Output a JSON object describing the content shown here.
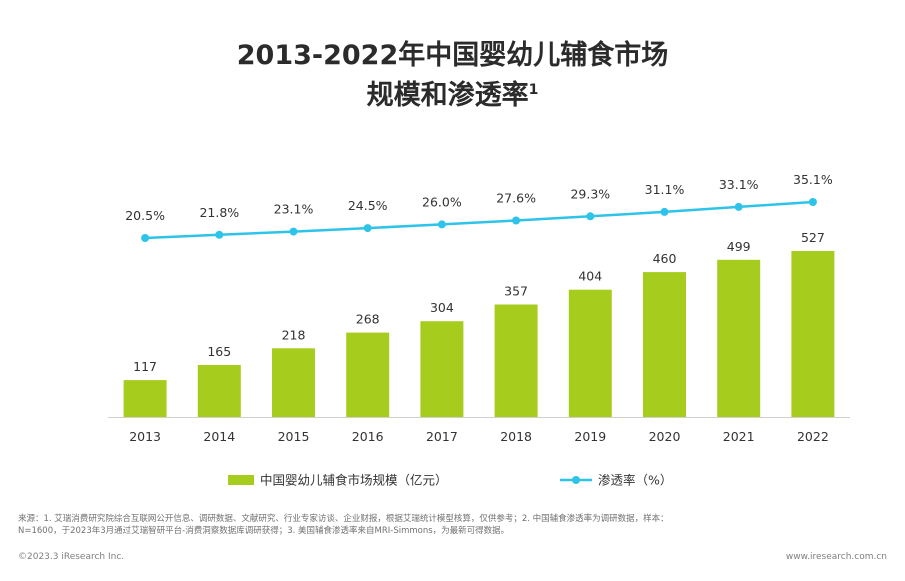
{
  "chart_data": {
    "type": "bar",
    "title_line1": "2013-2022年中国婴幼儿辅食市场",
    "title_line2": "规模和渗透率",
    "title_superscript": "1",
    "categories": [
      "2013",
      "2014",
      "2015",
      "2016",
      "2017",
      "2018",
      "2019",
      "2020",
      "2021",
      "2022"
    ],
    "series": [
      {
        "name": "中国婴幼儿辅食市场规模（亿元）",
        "type": "bar",
        "color": "#a6cd1d",
        "values": [
          117,
          165,
          218,
          268,
          304,
          357,
          404,
          460,
          499,
          527
        ],
        "labels": [
          "117",
          "165",
          "218",
          "268",
          "304",
          "357",
          "404",
          "460",
          "499",
          "527"
        ]
      },
      {
        "name": "渗透率（%）",
        "type": "line",
        "color": "#2ec4ea",
        "values": [
          20.5,
          21.8,
          23.1,
          24.5,
          26.0,
          27.6,
          29.3,
          31.1,
          33.1,
          35.1
        ],
        "labels": [
          "20.5%",
          "21.8%",
          "23.1%",
          "24.5%",
          "26.0%",
          "27.6%",
          "29.3%",
          "31.1%",
          "33.1%",
          "35.1%"
        ]
      }
    ],
    "grid": false,
    "legend_position": "bottom"
  },
  "footnote": {
    "line1": "来源：1. 艾瑞消费研究院综合互联网公开信息、调研数据、文献研究、行业专家访谈、企业财报，根据艾瑞统计模型核算，仅供参考；2. 中国辅食渗透率为调研数据，样本：",
    "line2": "N=1600，于2023年3月通过艾瑞智研平台-消费洞察数据库调研获得；3. 美国辅食渗透率来自MRI-Simmons，为最新可得数据。"
  },
  "copyright": "©2023.3 iResearch Inc.",
  "website": "www.iresearch.com.cn"
}
